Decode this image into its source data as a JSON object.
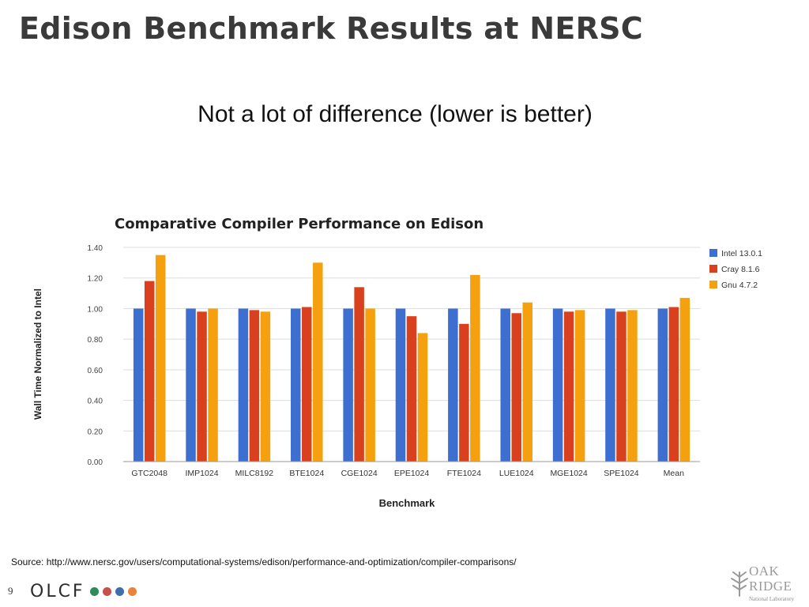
{
  "slide": {
    "title": "Edison Benchmark Results at NERSC",
    "subtitle": "Not a lot of difference (lower is better)",
    "source": "Source: http://www.nersc.gov/users/computational-systems/edison/performance-and-optimization/compiler-comparisons/",
    "page_number": "9"
  },
  "logos": {
    "olcf_text": "OLCF",
    "olcf_dot_colors": [
      "#2e8b57",
      "#c8504a",
      "#3d6fa8",
      "#e9823a"
    ],
    "ornl_line1": "OAK",
    "ornl_line2": "RIDGE",
    "ornl_sub": "National Laboratory",
    "ornl_icon": "tree-icon"
  },
  "chart_data": {
    "type": "bar",
    "title": "Comparative Compiler Performance on Edison",
    "xlabel": "Benchmark",
    "ylabel": "Wall Time Normalized to Intel",
    "ylim": [
      0,
      1.4
    ],
    "yticks": [
      "0.00",
      "0.20",
      "0.40",
      "0.60",
      "0.80",
      "1.00",
      "1.20",
      "1.40"
    ],
    "grid": true,
    "legend_position": "right",
    "categories": [
      "GTC2048",
      "IMP1024",
      "MILC8192",
      "BTE1024",
      "CGE1024",
      "EPE1024",
      "FTE1024",
      "LUE1024",
      "MGE1024",
      "SPE1024",
      "Mean"
    ],
    "series": [
      {
        "name": "Intel 13.0.1",
        "color": "#3d6fd0",
        "values": [
          1.0,
          1.0,
          1.0,
          1.0,
          1.0,
          1.0,
          1.0,
          1.0,
          1.0,
          1.0,
          1.0
        ]
      },
      {
        "name": "Cray 8.1.6",
        "color": "#d9411e",
        "values": [
          1.18,
          0.98,
          0.99,
          1.01,
          1.14,
          0.95,
          0.9,
          0.97,
          0.98,
          0.98,
          1.01
        ]
      },
      {
        "name": "Gnu 4.7.2",
        "color": "#f5a00e",
        "values": [
          1.35,
          1.0,
          0.98,
          1.3,
          1.0,
          0.84,
          1.22,
          1.04,
          0.99,
          0.99,
          1.07
        ]
      }
    ]
  }
}
